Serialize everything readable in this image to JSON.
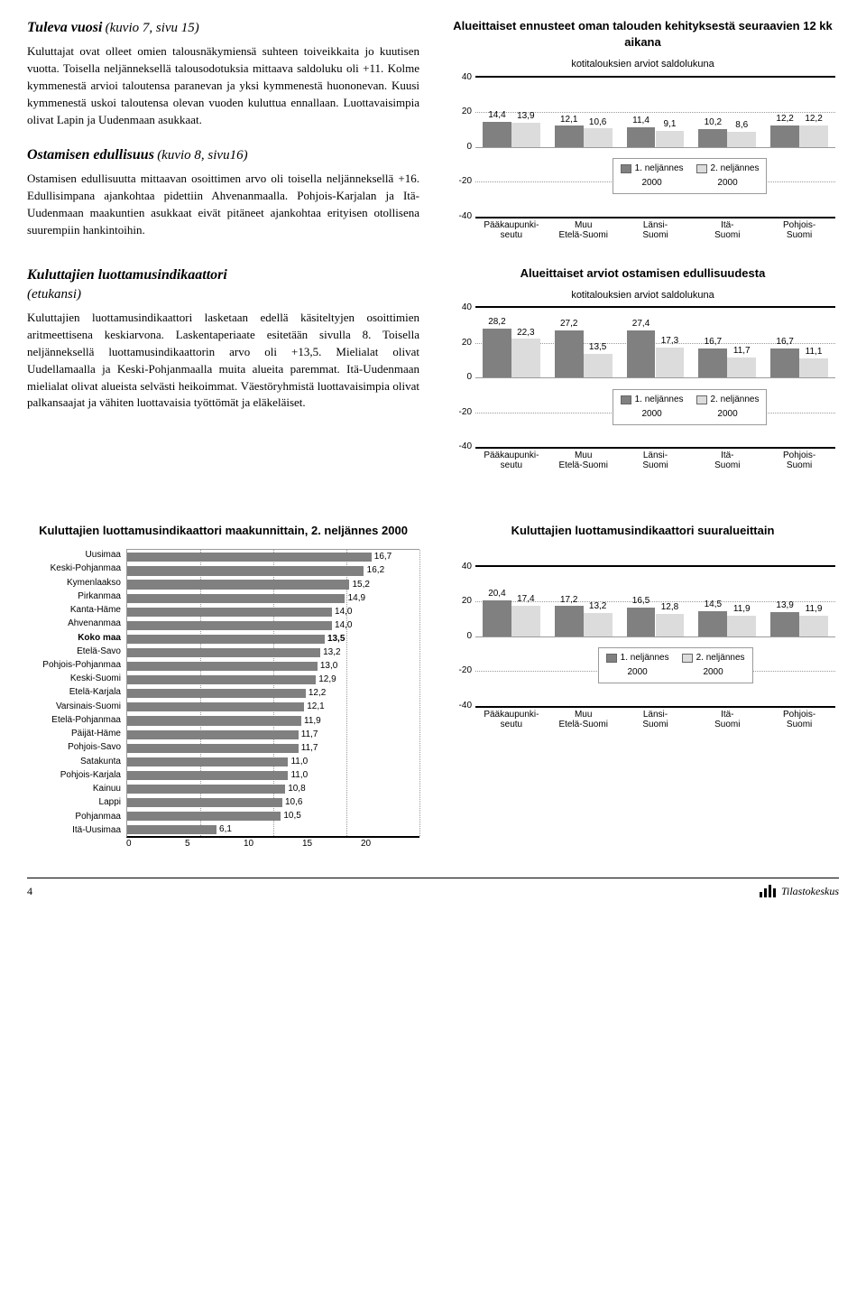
{
  "colors": {
    "bar_dark": "#808080",
    "bar_light": "#dcdcdc",
    "grid": "#9a9a9a",
    "text": "#000000",
    "bg": "#ffffff"
  },
  "section1": {
    "heading": "Tuleva vuosi",
    "ref": "(kuvio 7, sivu 15)",
    "body": "Kuluttajat ovat olleet omien talousnäkymiensä suhteen toiveikkaita jo kuutisen vuotta. Toisella neljänneksellä talousodotuksia mittaava saldoluku oli +11. Kolme kymmenestä arvioi taloutensa paranevan ja yksi kymmenestä huononevan. Kuusi kymmenestä uskoi taloutensa olevan vuoden kuluttua ennallaan. Luottavaisimpia olivat Lapin ja Uudenmaan asukkaat."
  },
  "section2": {
    "heading": "Ostamisen edullisuus",
    "ref": "(kuvio 8, sivu16)",
    "body": "Ostamisen edullisuutta mittaavan osoittimen arvo oli toisella neljänneksellä +16. Edullisimpana ajankohtaa pidettiin Ahvenanmaalla. Pohjois-Karjalan ja Itä-Uudenmaan maakuntien asukkaat eivät pitäneet ajankohtaa erityisen otollisena suurempiin hankintoihin."
  },
  "section3": {
    "heading": "Kuluttajien luottamusindikaattori",
    "ref": "(etukansi)",
    "body": "Kuluttajien luottamusindikaattori lasketaan edellä käsiteltyjen osoittimien aritmeettisena keskiarvona. Laskentaperiaate esitetään sivulla 8. Toisella neljänneksellä luottamusindikaattorin arvo oli +13,5. Mielialat olivat Uudellamaalla ja Keski-Pohjanmaalla muita alueita paremmat. Itä-Uudenmaan mielialat olivat alueista selvästi heikoimmat. Väestöryhmistä luottavaisimpia olivat palkansaajat ja vähiten luottavaisia työttömät ja eläkeläiset."
  },
  "chart1": {
    "title": "Alueittaiset ennusteet oman talouden kehityksestä seuraavien 12 kk aikana",
    "subtitle": "kotitalouksien arviot saldolukuna",
    "ylim": [
      -40,
      40
    ],
    "ytick_step": 20,
    "categories": [
      "Pääkaupunki-\nseutu",
      "Muu\nEtelä-Suomi",
      "Länsi-\nSuomi",
      "Itä-\nSuomi",
      "Pohjois-\nSuomi"
    ],
    "s1": [
      14.4,
      12.1,
      11.4,
      10.2,
      12.2
    ],
    "s2": [
      13.9,
      10.6,
      9.1,
      8.6,
      12.2
    ],
    "legend": {
      "s1": "1. neljännes",
      "s2": "2. neljännes",
      "year": "2000"
    }
  },
  "chart2": {
    "title": "Alueittaiset arviot ostamisen edullisuudesta",
    "subtitle": "kotitalouksien arviot saldolukuna",
    "ylim": [
      -40,
      40
    ],
    "ytick_step": 20,
    "categories": [
      "Pääkaupunki-\nseutu",
      "Muu\nEtelä-Suomi",
      "Länsi-\nSuomi",
      "Itä-\nSuomi",
      "Pohjois-\nSuomi"
    ],
    "s1": [
      28.2,
      27.2,
      27.4,
      16.7,
      16.7
    ],
    "s2": [
      22.3,
      13.5,
      17.3,
      11.7,
      11.1
    ],
    "legend": {
      "s1": "1. neljännes",
      "s2": "2. neljännes",
      "year": "2000"
    }
  },
  "chart3": {
    "title": "Kuluttajien luottamusindikaattori maakunnittain, 2. neljännes 2000",
    "xlim": [
      0,
      20
    ],
    "xtick_step": 5,
    "rows": [
      {
        "label": "Uusimaa",
        "v": 16.7
      },
      {
        "label": "Keski-Pohjanmaa",
        "v": 16.2
      },
      {
        "label": "Kymenlaakso",
        "v": 15.2
      },
      {
        "label": "Pirkanmaa",
        "v": 14.9
      },
      {
        "label": "Kanta-Häme",
        "v": 14.0,
        "disp": "14,0"
      },
      {
        "label": "Ahvenanmaa",
        "v": 14.0,
        "disp": "14,0"
      },
      {
        "label": "Koko maa",
        "v": 13.5,
        "bold": true
      },
      {
        "label": "Etelä-Savo",
        "v": 13.2
      },
      {
        "label": "Pohjois-Pohjanmaa",
        "v": 13.0
      },
      {
        "label": "Keski-Suomi",
        "v": 12.9
      },
      {
        "label": "Etelä-Karjala",
        "v": 12.2
      },
      {
        "label": "Varsinais-Suomi",
        "v": 12.1
      },
      {
        "label": "Etelä-Pohjanmaa",
        "v": 11.9
      },
      {
        "label": "Päijät-Häme",
        "v": 11.7
      },
      {
        "label": "Pohjois-Savo",
        "v": 11.7
      },
      {
        "label": "Satakunta",
        "v": 11.0
      },
      {
        "label": "Pohjois-Karjala",
        "v": 11.0
      },
      {
        "label": "Kainuu",
        "v": 10.8
      },
      {
        "label": "Lappi",
        "v": 10.6
      },
      {
        "label": "Pohjanmaa",
        "v": 10.5
      },
      {
        "label": "Itä-Uusimaa",
        "v": 6.1
      }
    ]
  },
  "chart4": {
    "title": "Kuluttajien luottamusindikaattori suuralueittain",
    "ylim": [
      -40,
      40
    ],
    "ytick_step": 20,
    "categories": [
      "Pääkaupunki-\nseutu",
      "Muu\nEtelä-Suomi",
      "Länsi-\nSuomi",
      "Itä-\nSuomi",
      "Pohjois-\nSuomi"
    ],
    "s1": [
      20.4,
      17.2,
      16.5,
      14.5,
      13.9
    ],
    "s2": [
      17.4,
      13.2,
      12.8,
      11.9,
      11.9
    ],
    "legend": {
      "s1": "1. neljännes",
      "s2": "2. neljännes",
      "year": "2000"
    }
  },
  "footer": {
    "page": "4",
    "brand": "Tilastokeskus"
  }
}
